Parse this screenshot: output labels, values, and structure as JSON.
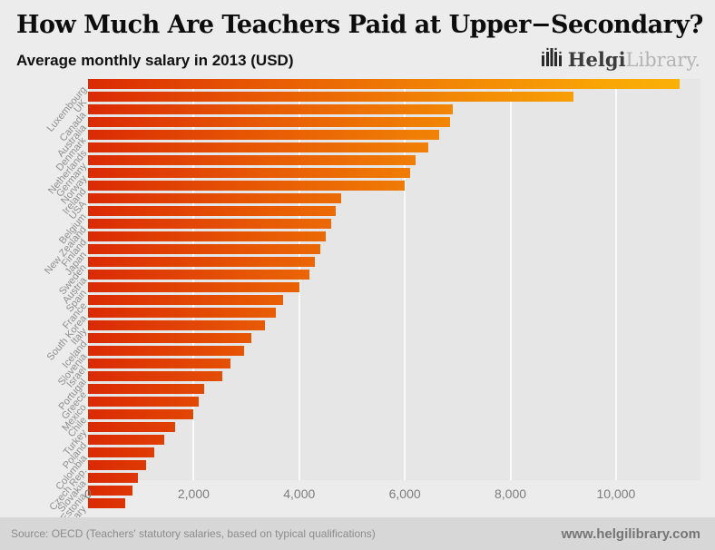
{
  "header": {
    "title": "How Much Are Teachers Paid at Upper−Secondary?",
    "subtitle": "Average monthly salary in 2013 (USD)",
    "logo": {
      "bold": "Helgi",
      "light": "Library."
    }
  },
  "chart_data": {
    "type": "bar",
    "orientation": "horizontal",
    "title": "How Much Are Teachers Paid at Upper−Secondary?",
    "subtitle": "Average monthly salary in 2013 (USD)",
    "categories": [
      "Luxembourg",
      "UK",
      "Canada",
      "Australia",
      "Denmark",
      "Netherlands",
      "Germany",
      "Norway",
      "Ireland",
      "USA",
      "Belgium",
      "New Zealand",
      "Finland",
      "Japan",
      "Sweden",
      "Austria",
      "Spain",
      "France",
      "South Korea",
      "Italy",
      "Iceland",
      "Slovenia",
      "Israel",
      "Portugal",
      "Greece",
      "Mexico",
      "Chile",
      "Turkey",
      "Poland",
      "Colombia",
      "Czech Rep.",
      "Slovakia",
      "Estonia",
      "Hungary"
    ],
    "values": [
      11200,
      9200,
      6900,
      6850,
      6650,
      6450,
      6200,
      6100,
      6000,
      4800,
      4700,
      4600,
      4500,
      4400,
      4300,
      4200,
      4000,
      3700,
      3550,
      3350,
      3100,
      2950,
      2700,
      2550,
      2200,
      2100,
      2000,
      1650,
      1450,
      1250,
      1100,
      950,
      850,
      700
    ],
    "xlim": [
      0,
      11600
    ],
    "x_ticks": [
      0,
      2000,
      4000,
      6000,
      8000,
      10000
    ],
    "x_tick_labels": [
      "0",
      "2,000",
      "4,000",
      "6,000",
      "8,000",
      "10,000"
    ],
    "grid": true,
    "legend": "none",
    "bar_gradient_stops": [
      "#da2a04 0%",
      "#e85c04 30%",
      "#f28705 60%",
      "#f9a606 85%",
      "#fbb307 100%"
    ]
  },
  "footer": {
    "source": "Source: OECD (Teachers' statutory salaries, based on typical qualifications)",
    "website": "www.helgilibrary.com"
  }
}
